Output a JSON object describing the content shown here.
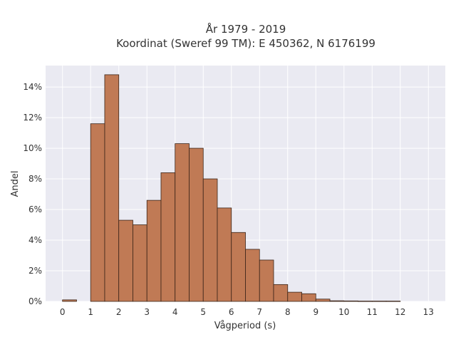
{
  "chart_data": {
    "type": "bar",
    "title": "År 1979 - 2019",
    "subtitle": "Koordinat (Sweref 99 TM): E 450362, N 6176199",
    "xlabel": "Vågperiod (s)",
    "ylabel": "Andel",
    "bin_width": 0.5,
    "x": [
      0,
      1,
      1.5,
      2,
      2.5,
      3,
      3.5,
      4,
      4.5,
      5,
      5.5,
      6,
      6.5,
      7,
      7.5,
      8,
      8.5,
      9,
      9.5,
      10,
      10.5,
      11,
      11.5
    ],
    "values": [
      0.1,
      11.6,
      14.8,
      5.3,
      5.0,
      6.6,
      8.4,
      10.3,
      10.0,
      8.0,
      6.1,
      4.5,
      3.4,
      2.7,
      1.1,
      0.6,
      0.5,
      0.15,
      0.04,
      0.03,
      0.02,
      0.02,
      0.02
    ],
    "value_unit": "%",
    "xlim": [
      -0.6,
      13.6
    ],
    "ylim": [
      0,
      15.4
    ],
    "x_ticks": [
      "0",
      "1",
      "2",
      "3",
      "4",
      "5",
      "6",
      "7",
      "8",
      "9",
      "10",
      "11",
      "12",
      "13"
    ],
    "y_ticks": [
      "0%",
      "2%",
      "4%",
      "6%",
      "8%",
      "10%",
      "12%",
      "14%"
    ],
    "grid": true,
    "bar_color": "#c07a55",
    "bar_edge_color": "#3a2418",
    "plot_background": "#eaeaf2",
    "grid_color": "#ffffff"
  }
}
